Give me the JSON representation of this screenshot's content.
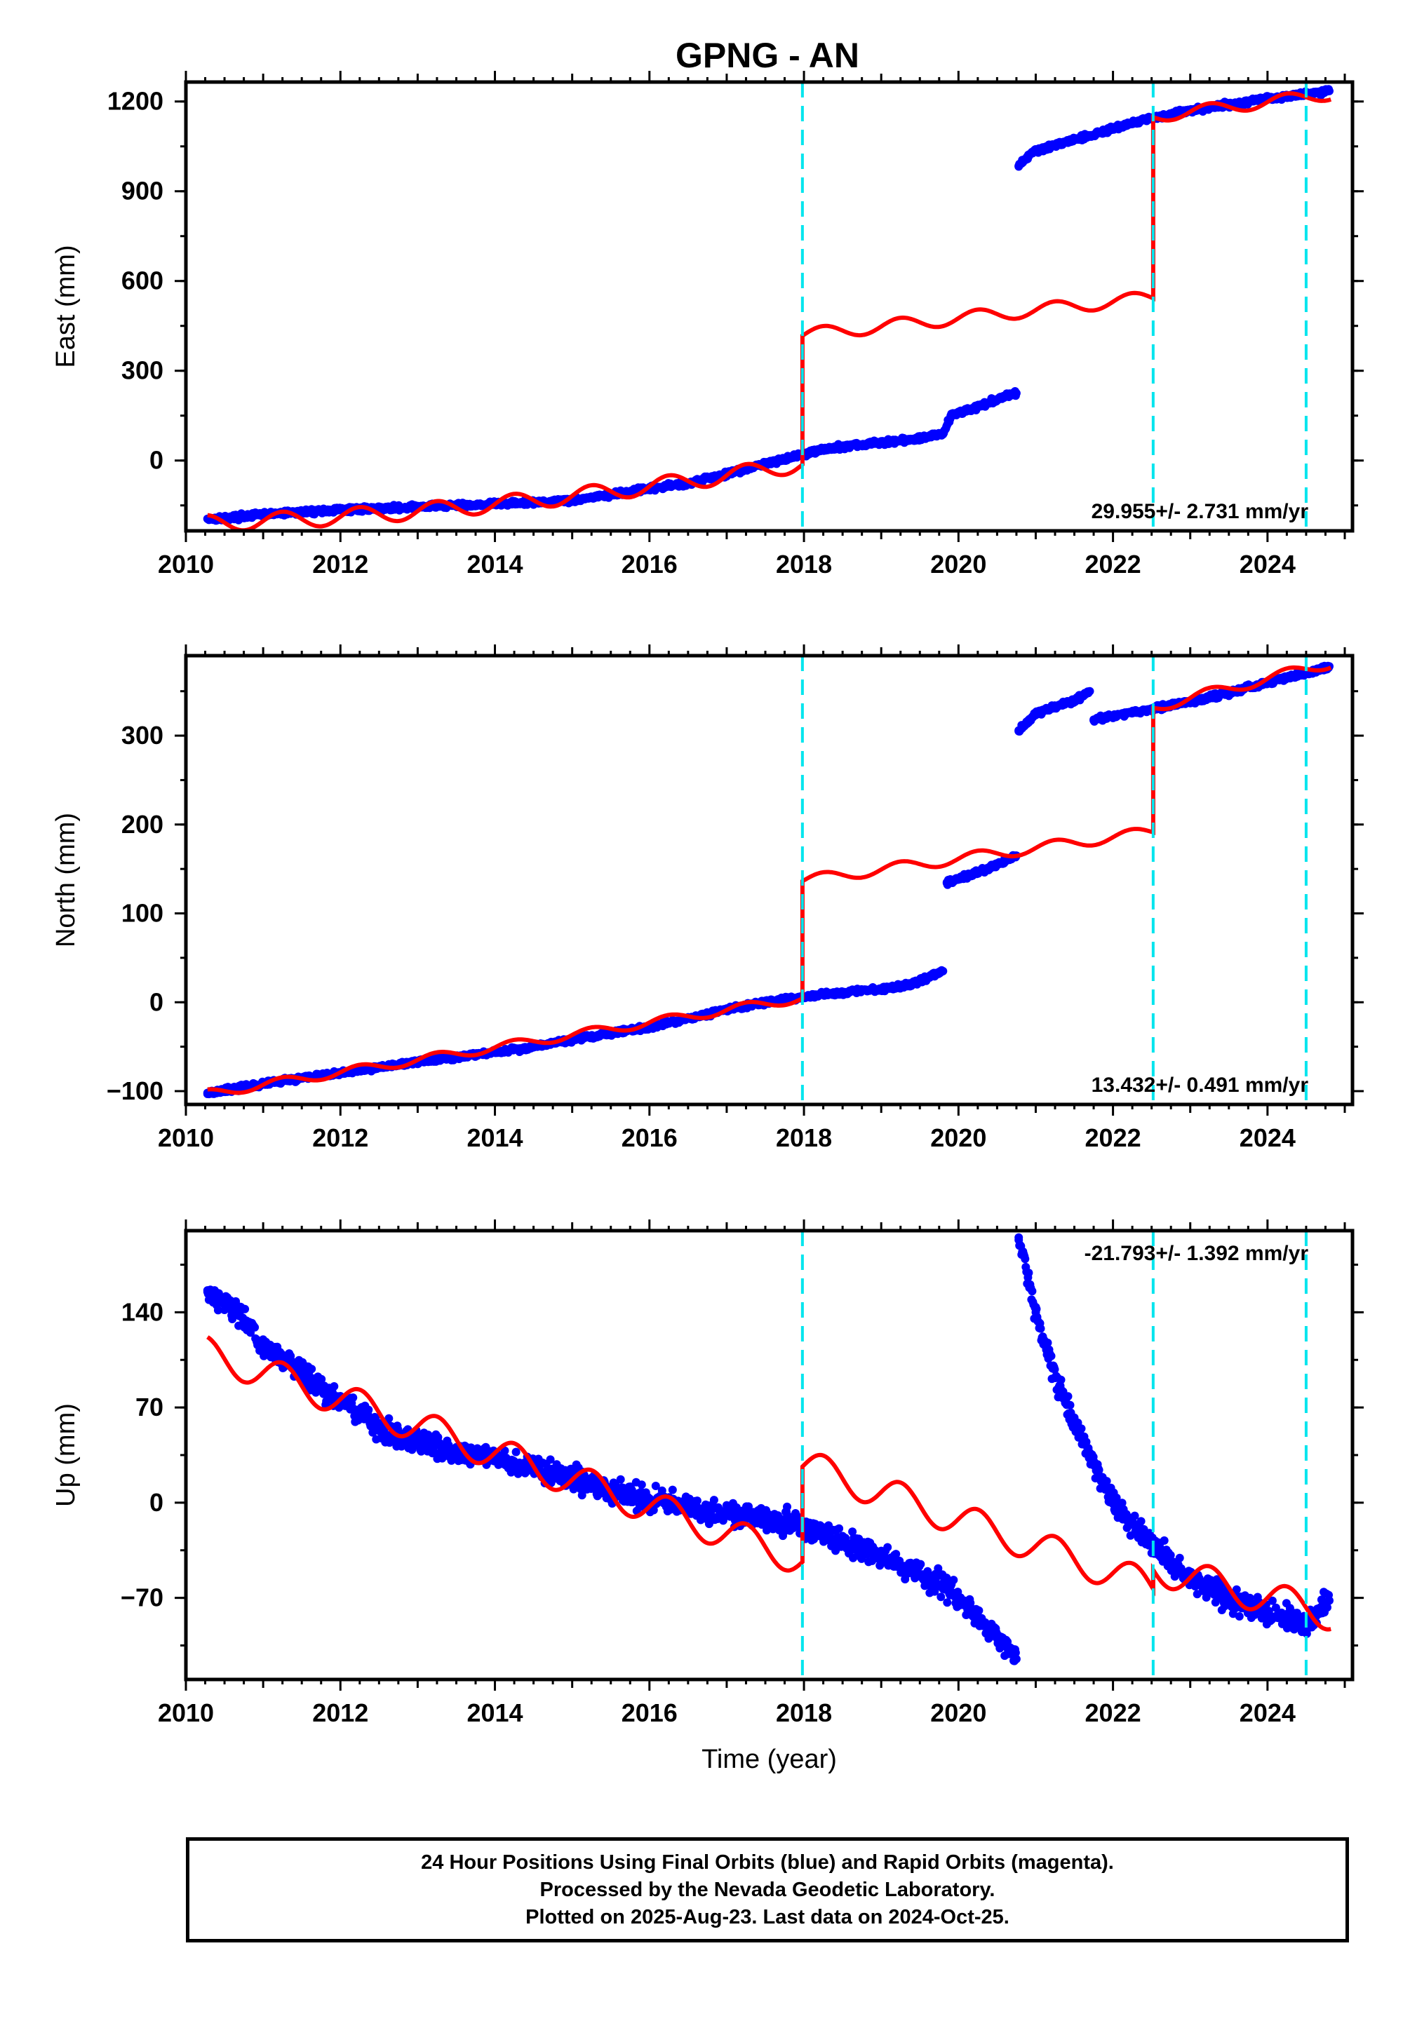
{
  "title": "GPNG - AN",
  "footer": {
    "line1": "24 Hour Positions Using Final Orbits (blue) and Rapid Orbits (magenta).",
    "line2": "Processed by the Nevada Geodetic Laboratory.",
    "line3": "Plotted on 2025-Aug-23. Last data on 2024-Oct-25."
  },
  "colors": {
    "data_points": "#0000ff",
    "model_line": "#ff0000",
    "events": "#00e5ee",
    "frame": "#000000"
  },
  "chart_data": [
    {
      "type": "scatter",
      "name": "east",
      "ylabel": "East (mm)",
      "xlabel": "",
      "xlim": [
        2010,
        2025.1
      ],
      "ylim": [
        -235,
        1265
      ],
      "xticks": [
        2010,
        2012,
        2014,
        2016,
        2018,
        2020,
        2022,
        2024
      ],
      "yticks": [
        0,
        300,
        600,
        900,
        1200
      ],
      "rate_label": "29.955+/- 2.731 mm/yr",
      "rate_position": "bottom-right",
      "event_lines": [
        2017.98,
        2022.52,
        2024.5
      ],
      "observed": {
        "series": "blue",
        "points": [
          [
            2010.28,
            -195
          ],
          [
            2010.6,
            -190
          ],
          [
            2011.0,
            -180
          ],
          [
            2011.5,
            -172
          ],
          [
            2012.0,
            -165
          ],
          [
            2012.5,
            -160
          ],
          [
            2013.0,
            -155
          ],
          [
            2013.5,
            -150
          ],
          [
            2014.0,
            -145
          ],
          [
            2014.5,
            -140
          ],
          [
            2015.0,
            -132
          ],
          [
            2015.5,
            -115
          ],
          [
            2016.0,
            -95
          ],
          [
            2016.5,
            -75
          ],
          [
            2017.0,
            -45
          ],
          [
            2017.5,
            -10
          ],
          [
            2017.9,
            15
          ],
          [
            2018.2,
            35
          ],
          [
            2018.6,
            50
          ],
          [
            2019.0,
            60
          ],
          [
            2019.4,
            70
          ],
          [
            2019.8,
            90
          ],
          [
            2019.9,
            150
          ],
          [
            2020.2,
            175
          ],
          [
            2020.5,
            205
          ],
          [
            2020.75,
            225
          ],
          [
            2020.78,
            985
          ],
          [
            2020.95,
            1030
          ],
          [
            2021.3,
            1060
          ],
          [
            2021.7,
            1085
          ],
          [
            2022.0,
            1110
          ],
          [
            2022.3,
            1130
          ],
          [
            2022.6,
            1150
          ],
          [
            2023.0,
            1170
          ],
          [
            2023.5,
            1190
          ],
          [
            2024.0,
            1210
          ],
          [
            2024.5,
            1225
          ],
          [
            2024.8,
            1235
          ]
        ]
      },
      "model": {
        "series": "red",
        "segments": [
          {
            "start": 2010.28,
            "end": 2017.98,
            "start_value": -210,
            "end_value": -10,
            "quad": -130,
            "amplitude": 28
          },
          {
            "start": 2017.98,
            "end": 2022.52,
            "start_value": 420,
            "end_value": 545,
            "quad": 0,
            "amplitude": 22
          },
          {
            "start": 2022.52,
            "end": 2024.82,
            "start_value": 1150,
            "end_value": 1225,
            "quad": 0,
            "amplitude": 20
          }
        ]
      }
    },
    {
      "type": "scatter",
      "name": "north",
      "ylabel": "North (mm)",
      "xlabel": "",
      "xlim": [
        2010,
        2025.1
      ],
      "ylim": [
        -115,
        390
      ],
      "xticks": [
        2010,
        2012,
        2014,
        2016,
        2018,
        2020,
        2022,
        2024
      ],
      "yticks": [
        -100,
        0,
        100,
        200,
        300
      ],
      "rate_label": "13.432+/- 0.491 mm/yr",
      "rate_position": "bottom-right",
      "event_lines": [
        2017.98,
        2022.52,
        2024.5
      ],
      "observed": {
        "series": "blue",
        "points": [
          [
            2010.28,
            -102
          ],
          [
            2011.0,
            -92
          ],
          [
            2011.5,
            -85
          ],
          [
            2012.0,
            -80
          ],
          [
            2012.5,
            -73
          ],
          [
            2013.0,
            -67
          ],
          [
            2013.5,
            -62
          ],
          [
            2014.0,
            -56
          ],
          [
            2014.5,
            -50
          ],
          [
            2015.0,
            -42
          ],
          [
            2015.5,
            -35
          ],
          [
            2016.0,
            -28
          ],
          [
            2016.5,
            -18
          ],
          [
            2017.0,
            -8
          ],
          [
            2017.5,
            0
          ],
          [
            2017.9,
            5
          ],
          [
            2018.2,
            8
          ],
          [
            2018.6,
            12
          ],
          [
            2019.0,
            15
          ],
          [
            2019.4,
            20
          ],
          [
            2019.8,
            35
          ],
          [
            2019.85,
            135
          ],
          [
            2020.2,
            145
          ],
          [
            2020.5,
            155
          ],
          [
            2020.75,
            165
          ],
          [
            2020.78,
            305
          ],
          [
            2021.0,
            325
          ],
          [
            2021.5,
            340
          ],
          [
            2021.7,
            350
          ],
          [
            2021.75,
            318
          ],
          [
            2022.0,
            322
          ],
          [
            2022.5,
            330
          ],
          [
            2023.0,
            338
          ],
          [
            2023.5,
            348
          ],
          [
            2024.0,
            360
          ],
          [
            2024.5,
            370
          ],
          [
            2024.8,
            378
          ]
        ]
      },
      "model": {
        "series": "red",
        "segments": [
          {
            "start": 2010.28,
            "end": 2017.98,
            "start_value": -103,
            "end_value": 5,
            "quad": 0,
            "amplitude": 5
          },
          {
            "start": 2017.98,
            "end": 2022.52,
            "start_value": 137,
            "end_value": 192,
            "quad": 0,
            "amplitude": 6
          },
          {
            "start": 2022.52,
            "end": 2024.82,
            "start_value": 332,
            "end_value": 382,
            "quad": 0,
            "amplitude": 6
          }
        ]
      }
    },
    {
      "type": "scatter",
      "name": "up",
      "ylabel": "Up (mm)",
      "xlabel": "Time (year)",
      "xlim": [
        2010,
        2025.1
      ],
      "ylim": [
        -130,
        200
      ],
      "xticks": [
        2010,
        2012,
        2014,
        2016,
        2018,
        2020,
        2022,
        2024
      ],
      "yticks": [
        -70,
        0,
        70,
        140
      ],
      "rate_label": "-21.793+/- 1.392 mm/yr",
      "rate_position": "top-right",
      "event_lines": [
        2017.98,
        2022.52,
        2024.5
      ],
      "observed": {
        "series": "blue",
        "points": [
          [
            2010.28,
            155
          ],
          [
            2010.6,
            145
          ],
          [
            2011.0,
            115
          ],
          [
            2011.5,
            95
          ],
          [
            2012.0,
            75
          ],
          [
            2012.5,
            55
          ],
          [
            2013.0,
            45
          ],
          [
            2013.5,
            38
          ],
          [
            2014.0,
            32
          ],
          [
            2014.5,
            25
          ],
          [
            2015.0,
            18
          ],
          [
            2015.5,
            10
          ],
          [
            2016.0,
            2
          ],
          [
            2016.5,
            -3
          ],
          [
            2017.0,
            -8
          ],
          [
            2017.5,
            -12
          ],
          [
            2017.9,
            -15
          ],
          [
            2018.2,
            -22
          ],
          [
            2018.6,
            -30
          ],
          [
            2019.0,
            -40
          ],
          [
            2019.4,
            -50
          ],
          [
            2019.8,
            -60
          ],
          [
            2020.2,
            -80
          ],
          [
            2020.5,
            -100
          ],
          [
            2020.75,
            -115
          ],
          [
            2020.78,
            195
          ],
          [
            2021.0,
            140
          ],
          [
            2021.3,
            85
          ],
          [
            2021.7,
            35
          ],
          [
            2022.0,
            0
          ],
          [
            2022.3,
            -18
          ],
          [
            2022.6,
            -35
          ],
          [
            2023.0,
            -55
          ],
          [
            2023.5,
            -70
          ],
          [
            2024.0,
            -82
          ],
          [
            2024.5,
            -88
          ],
          [
            2024.8,
            -72
          ]
        ]
      },
      "model": {
        "series": "red",
        "segments": [
          {
            "start": 2010.28,
            "end": 2017.98,
            "start_value": 110,
            "end_value": -42,
            "quad": 0,
            "amplitude": 12
          },
          {
            "start": 2017.98,
            "end": 2022.52,
            "start_value": 28,
            "end_value": -62,
            "quad": 0,
            "amplitude": 12
          },
          {
            "start": 2022.52,
            "end": 2024.82,
            "start_value": -48,
            "end_value": -82,
            "quad": 0,
            "amplitude": 12
          }
        ]
      }
    }
  ]
}
